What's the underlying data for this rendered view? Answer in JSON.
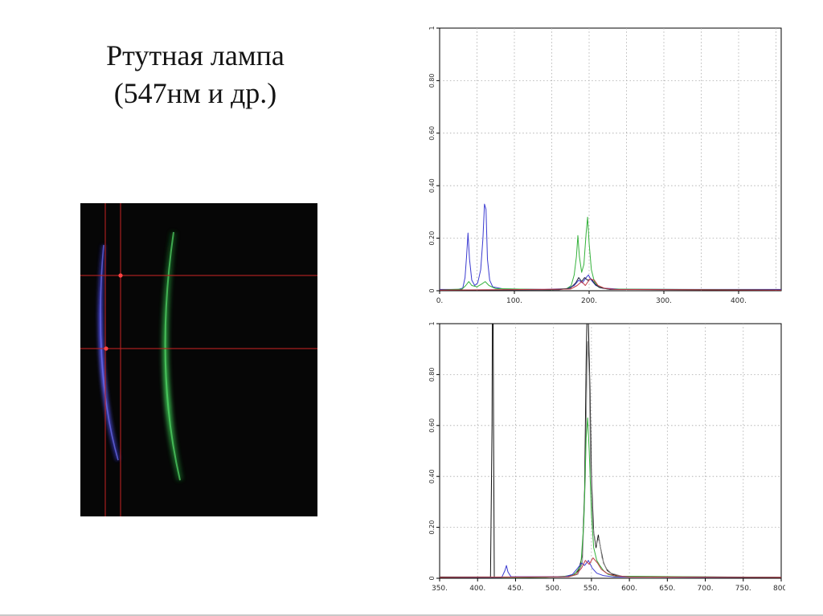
{
  "title": {
    "line1": "Ртутная лампа",
    "line2": "(547нм и др.)"
  },
  "photo": {
    "content": "spectral-lamp-photo",
    "arc_colors": {
      "blue": "#4646d8",
      "green": "#2fa844"
    },
    "crosshair_color": "#c22020"
  },
  "chart_data": [
    {
      "type": "line",
      "title": "",
      "xlabel": "",
      "ylabel": "",
      "xlim": [
        0,
        457
      ],
      "ylim": [
        0,
        1
      ],
      "xgrid_step": 50,
      "ygrid_step": 0.2,
      "grid": true,
      "xticks": [
        {
          "v": 0,
          "label": "0."
        },
        {
          "v": 100,
          "label": "100."
        },
        {
          "v": 200,
          "label": "200."
        },
        {
          "v": 300,
          "label": "300."
        },
        {
          "v": 400,
          "label": "400."
        }
      ],
      "yticks": [
        {
          "v": 1,
          "label": "1"
        },
        {
          "v": 0.8,
          "label": "0.80"
        },
        {
          "v": 0.6,
          "label": "0.60"
        },
        {
          "v": 0.4,
          "label": "0.40"
        },
        {
          "v": 0.2,
          "label": "0.20"
        },
        {
          "v": 0,
          "label": "0"
        }
      ],
      "series": [
        {
          "name": "blue-channel",
          "color": "#3a3ad0",
          "width": 1,
          "points": [
            [
              0,
              0.005
            ],
            [
              25,
              0.005
            ],
            [
              31,
              0.01
            ],
            [
              34,
              0.05
            ],
            [
              36,
              0.13
            ],
            [
              38,
              0.22
            ],
            [
              40,
              0.12
            ],
            [
              43,
              0.04
            ],
            [
              47,
              0.02
            ],
            [
              51,
              0.03
            ],
            [
              55,
              0.08
            ],
            [
              58,
              0.2
            ],
            [
              60,
              0.33
            ],
            [
              62,
              0.31
            ],
            [
              64,
              0.12
            ],
            [
              67,
              0.04
            ],
            [
              71,
              0.015
            ],
            [
              85,
              0.007
            ],
            [
              140,
              0.005
            ],
            [
              170,
              0.008
            ],
            [
              180,
              0.02
            ],
            [
              186,
              0.04
            ],
            [
              191,
              0.03
            ],
            [
              196,
              0.05
            ],
            [
              199,
              0.06
            ],
            [
              203,
              0.04
            ],
            [
              209,
              0.02
            ],
            [
              218,
              0.01
            ],
            [
              240,
              0.006
            ],
            [
              320,
              0.005
            ],
            [
              457,
              0.005
            ]
          ]
        },
        {
          "name": "green-channel",
          "color": "#35b23c",
          "width": 1,
          "points": [
            [
              0,
              0.003
            ],
            [
              30,
              0.006
            ],
            [
              35,
              0.02
            ],
            [
              39,
              0.035
            ],
            [
              43,
              0.02
            ],
            [
              50,
              0.015
            ],
            [
              56,
              0.025
            ],
            [
              61,
              0.035
            ],
            [
              66,
              0.02
            ],
            [
              75,
              0.008
            ],
            [
              150,
              0.004
            ],
            [
              170,
              0.008
            ],
            [
              176,
              0.02
            ],
            [
              180,
              0.06
            ],
            [
              183,
              0.13
            ],
            [
              185,
              0.21
            ],
            [
              187,
              0.13
            ],
            [
              190,
              0.07
            ],
            [
              193,
              0.1
            ],
            [
              196,
              0.22
            ],
            [
              198,
              0.28
            ],
            [
              200,
              0.18
            ],
            [
              203,
              0.08
            ],
            [
              207,
              0.035
            ],
            [
              212,
              0.015
            ],
            [
              225,
              0.006
            ],
            [
              457,
              0.003
            ]
          ]
        },
        {
          "name": "dark-channel",
          "color": "#23233f",
          "width": 1,
          "points": [
            [
              0,
              0.003
            ],
            [
              160,
              0.004
            ],
            [
              175,
              0.01
            ],
            [
              182,
              0.03
            ],
            [
              186,
              0.05
            ],
            [
              190,
              0.035
            ],
            [
              194,
              0.05
            ],
            [
              198,
              0.04
            ],
            [
              203,
              0.045
            ],
            [
              208,
              0.025
            ],
            [
              214,
              0.012
            ],
            [
              228,
              0.005
            ],
            [
              457,
              0.003
            ]
          ]
        },
        {
          "name": "red-channel",
          "color": "#c03a48",
          "width": 1,
          "points": [
            [
              0,
              0.002
            ],
            [
              175,
              0.006
            ],
            [
              184,
              0.02
            ],
            [
              190,
              0.035
            ],
            [
              195,
              0.02
            ],
            [
              201,
              0.045
            ],
            [
              207,
              0.04
            ],
            [
              212,
              0.02
            ],
            [
              220,
              0.01
            ],
            [
              235,
              0.005
            ],
            [
              457,
              0.002
            ]
          ]
        }
      ]
    },
    {
      "type": "line",
      "title": "",
      "xlabel": "",
      "ylabel": "",
      "xlim": [
        350,
        800
      ],
      "ylim": [
        0,
        1
      ],
      "xgrid_step": 50,
      "ygrid_step": 0.2,
      "grid": true,
      "xticks": [
        {
          "v": 350,
          "label": "350."
        },
        {
          "v": 400,
          "label": "400."
        },
        {
          "v": 450,
          "label": "450."
        },
        {
          "v": 500,
          "label": "500."
        },
        {
          "v": 550,
          "label": "550."
        },
        {
          "v": 600,
          "label": "600."
        },
        {
          "v": 650,
          "label": "650."
        },
        {
          "v": 700,
          "label": "700."
        },
        {
          "v": 750,
          "label": "750."
        },
        {
          "v": 800,
          "label": "800."
        }
      ],
      "yticks": [
        {
          "v": 1,
          "label": "1"
        },
        {
          "v": 0.8,
          "label": "0.80"
        },
        {
          "v": 0.6,
          "label": "0.60"
        },
        {
          "v": 0.4,
          "label": "0.40"
        },
        {
          "v": 0.2,
          "label": "0.20"
        },
        {
          "v": 0,
          "label": "0"
        }
      ],
      "series": [
        {
          "name": "black-total",
          "color": "#111111",
          "width": 1,
          "points": [
            [
              350,
              0.005
            ],
            [
              417,
              0.005
            ],
            [
              419,
              0.6
            ],
            [
              419.5,
              1.0
            ],
            [
              420.5,
              1.0
            ],
            [
              421,
              0.6
            ],
            [
              422,
              0.005
            ],
            [
              470,
              0.004
            ],
            [
              510,
              0.006
            ],
            [
              525,
              0.01
            ],
            [
              533,
              0.03
            ],
            [
              538,
              0.09
            ],
            [
              541,
              0.35
            ],
            [
              543,
              0.85
            ],
            [
              544,
              1.0
            ],
            [
              546,
              1.0
            ],
            [
              548,
              0.75
            ],
            [
              550,
              0.4
            ],
            [
              553,
              0.18
            ],
            [
              556,
              0.12
            ],
            [
              559,
              0.17
            ],
            [
              562,
              0.12
            ],
            [
              566,
              0.06
            ],
            [
              571,
              0.03
            ],
            [
              578,
              0.015
            ],
            [
              590,
              0.008
            ],
            [
              640,
              0.005
            ],
            [
              800,
              0.004
            ]
          ]
        },
        {
          "name": "gray-total",
          "color": "#8a8a8a",
          "width": 1,
          "points": [
            [
              350,
              0.004
            ],
            [
              520,
              0.006
            ],
            [
              532,
              0.015
            ],
            [
              538,
              0.06
            ],
            [
              542,
              0.4
            ],
            [
              544,
              0.8
            ],
            [
              545,
              0.93
            ],
            [
              547,
              0.8
            ],
            [
              549,
              0.45
            ],
            [
              552,
              0.2
            ],
            [
              556,
              0.13
            ],
            [
              560,
              0.16
            ],
            [
              564,
              0.08
            ],
            [
              569,
              0.04
            ],
            [
              576,
              0.02
            ],
            [
              590,
              0.008
            ],
            [
              800,
              0.004
            ]
          ]
        },
        {
          "name": "green-channel",
          "color": "#35b23c",
          "width": 1,
          "points": [
            [
              350,
              0.003
            ],
            [
              490,
              0.004
            ],
            [
              515,
              0.008
            ],
            [
              528,
              0.015
            ],
            [
              536,
              0.05
            ],
            [
              540,
              0.22
            ],
            [
              543,
              0.55
            ],
            [
              545,
              0.63
            ],
            [
              547,
              0.5
            ],
            [
              550,
              0.25
            ],
            [
              553,
              0.12
            ],
            [
              557,
              0.07
            ],
            [
              561,
              0.05
            ],
            [
              566,
              0.03
            ],
            [
              572,
              0.015
            ],
            [
              582,
              0.008
            ],
            [
              800,
              0.003
            ]
          ]
        },
        {
          "name": "blue-channel",
          "color": "#3a3ad0",
          "width": 1,
          "points": [
            [
              350,
              0.003
            ],
            [
              432,
              0.004
            ],
            [
              436,
              0.03
            ],
            [
              438,
              0.05
            ],
            [
              440,
              0.025
            ],
            [
              444,
              0.006
            ],
            [
              515,
              0.006
            ],
            [
              525,
              0.015
            ],
            [
              532,
              0.04
            ],
            [
              537,
              0.06
            ],
            [
              541,
              0.05
            ],
            [
              546,
              0.07
            ],
            [
              551,
              0.04
            ],
            [
              557,
              0.02
            ],
            [
              566,
              0.01
            ],
            [
              580,
              0.005
            ],
            [
              800,
              0.003
            ]
          ]
        },
        {
          "name": "red-channel",
          "color": "#c03a48",
          "width": 1,
          "points": [
            [
              350,
              0.003
            ],
            [
              520,
              0.006
            ],
            [
              530,
              0.015
            ],
            [
              537,
              0.04
            ],
            [
              542,
              0.07
            ],
            [
              547,
              0.055
            ],
            [
              552,
              0.08
            ],
            [
              558,
              0.06
            ],
            [
              563,
              0.035
            ],
            [
              570,
              0.02
            ],
            [
              580,
              0.01
            ],
            [
              600,
              0.005
            ],
            [
              800,
              0.003
            ]
          ]
        }
      ]
    }
  ]
}
